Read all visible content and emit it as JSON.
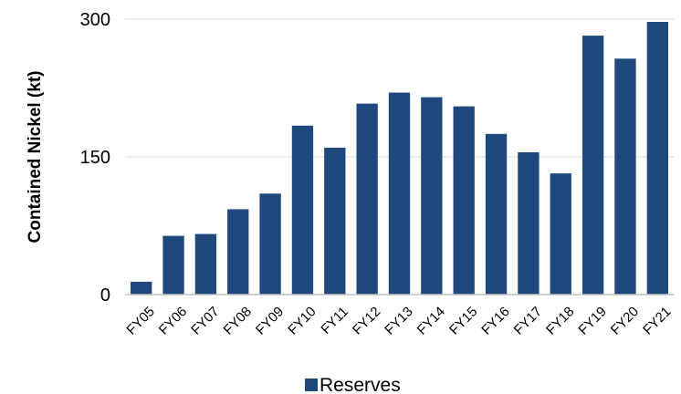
{
  "chart_data": {
    "type": "bar",
    "categories": [
      "FY05",
      "FY06",
      "FY07",
      "FY08",
      "FY09",
      "FY10",
      "FY11",
      "FY12",
      "FY13",
      "FY14",
      "FY15",
      "FY16",
      "FY17",
      "FY18",
      "FY19",
      "FY20",
      "FY21"
    ],
    "series": [
      {
        "name": "Reserves",
        "color": "#1f497d",
        "values": [
          14,
          64,
          66,
          93,
          110,
          184,
          160,
          208,
          220,
          215,
          205,
          175,
          155,
          132,
          282,
          257,
          297
        ]
      }
    ],
    "ylabel": "Contained Nickel (kt)",
    "xlabel": "",
    "ylim": [
      0,
      300
    ],
    "yticks": [
      0,
      150,
      300
    ],
    "grid": true,
    "legend_position": "bottom"
  }
}
